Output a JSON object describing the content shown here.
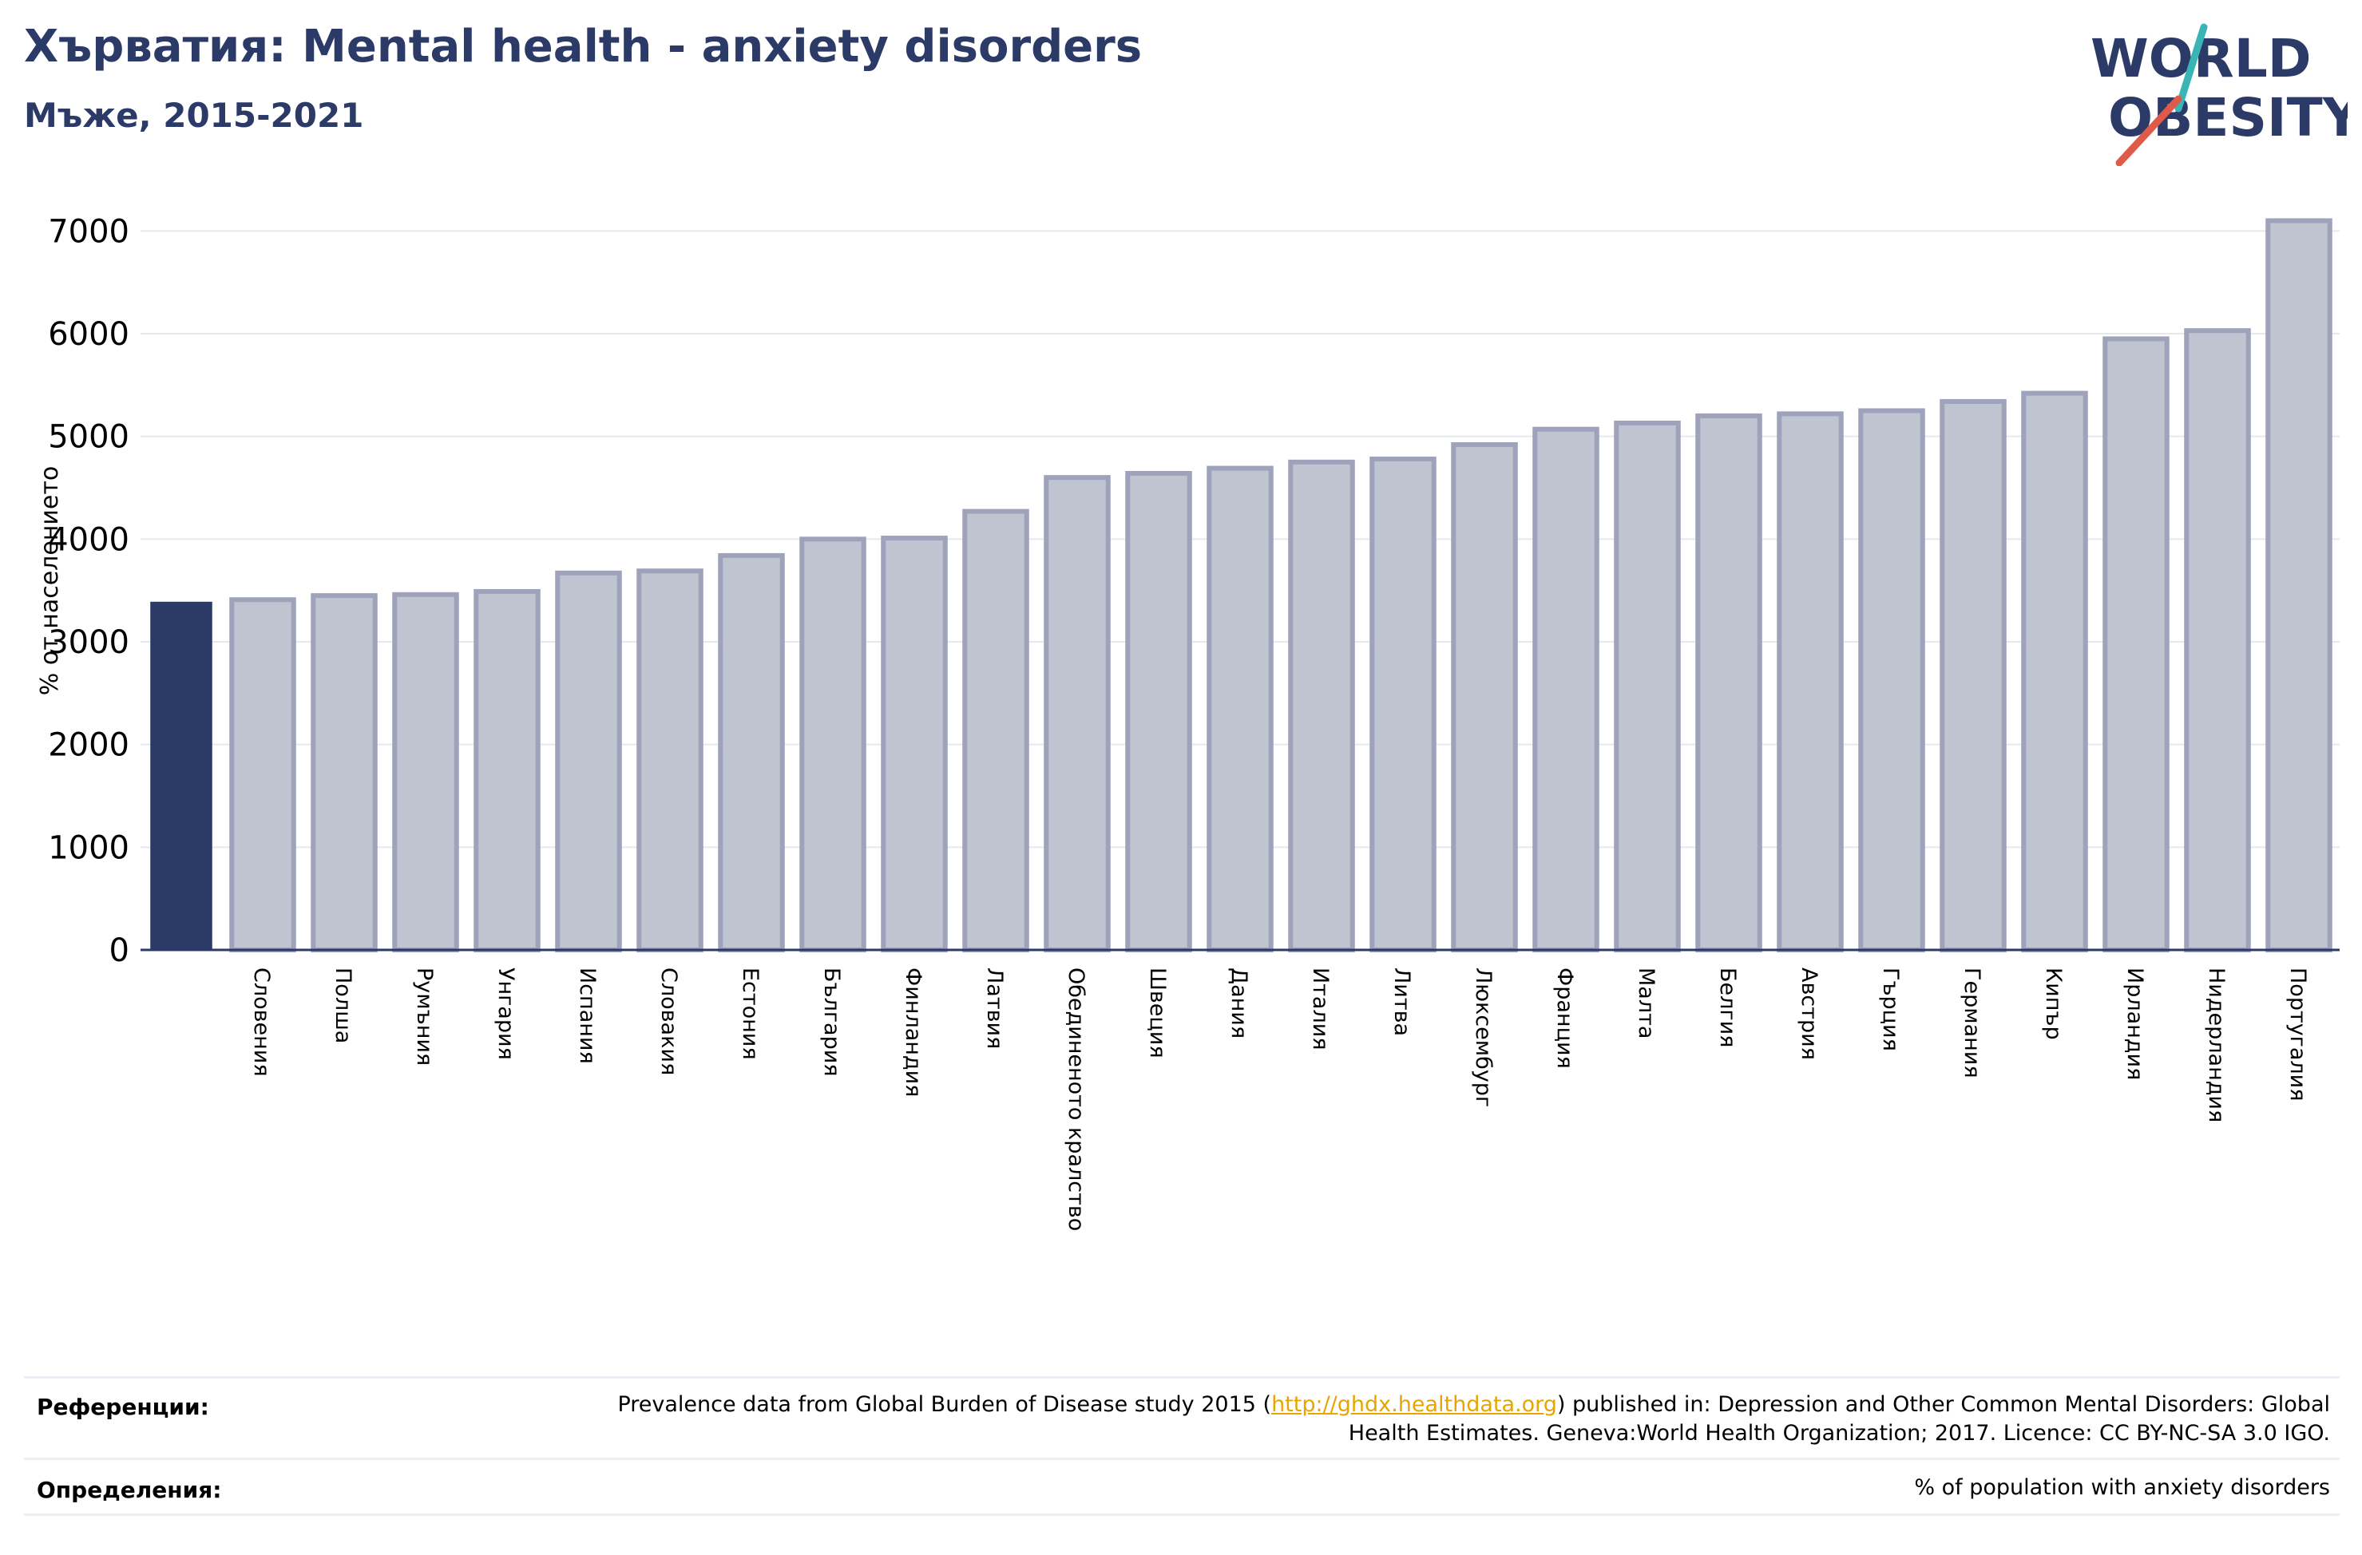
{
  "header": {
    "title": "Хърватия: Mental health - anxiety disorders",
    "subtitle": "Мъже, 2015-2021"
  },
  "logo": {
    "line1": "WORLD",
    "line2": "OBESITY",
    "accent": "#e05a4a",
    "accent2": "#3ab5b5",
    "color": "#2b3a67"
  },
  "colors": {
    "highlight": "#2b3a67",
    "bar": "#c0c3d0",
    "bar_border": "#9ea3bb",
    "grid": "#e6e8ef",
    "axis": "#2b3a67"
  },
  "chart_data": {
    "type": "bar",
    "ylabel": "% от населението",
    "ylim": [
      0,
      7500
    ],
    "yticks": [
      0,
      1000,
      2000,
      3000,
      4000,
      5000,
      6000,
      7000
    ],
    "grid": true,
    "highlight_index": 0,
    "categories": [
      "",
      "Словения",
      "Полша",
      "Румъния",
      "Унгария",
      "Испания",
      "Словакия",
      "Естония",
      "България",
      "Финландия",
      "Латвия",
      "Обединеното кралство",
      "Швеция",
      "Дания",
      "Италия",
      "Литва",
      "Люксембург",
      "Франция",
      "Малта",
      "Белгия",
      "Австрия",
      "Гърция",
      "Германия",
      "Кипър",
      "Ирландия",
      "Нидерландия",
      "Португалия"
    ],
    "values": [
      3390,
      3410,
      3450,
      3460,
      3490,
      3670,
      3690,
      3840,
      4000,
      4010,
      4270,
      4600,
      4640,
      4690,
      4750,
      4780,
      4920,
      5070,
      5130,
      5200,
      5220,
      5250,
      5340,
      5420,
      5950,
      6030,
      7100
    ]
  },
  "footer": {
    "references_label": "Референции:",
    "references_pre": "Prevalence data from Global Burden of Disease study 2015 (",
    "references_link": "http://ghdx.healthdata.org",
    "references_post": ") published in: Depression and Other Common Mental Disorders: Global Health Estimates. Geneva:World Health Organization; 2017. Licence: CC BY-NC-SA 3.0 IGO.",
    "definitions_label": "Определения:",
    "definitions_text": "% of population with anxiety disorders"
  }
}
